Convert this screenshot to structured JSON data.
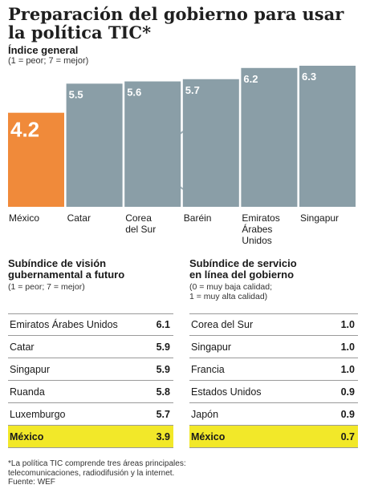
{
  "title": "Preparación del gobierno para usar la política TIC*",
  "chart": {
    "subtitle": "Índice general",
    "note": "(1 = peor; 7 = mejor)"
  },
  "chart_data": {
    "type": "bar",
    "title": "Índice general",
    "categories": [
      "México",
      "Catar",
      "Corea del Sur",
      "Baréin",
      "Emiratos Árabes Unidos",
      "Singapur"
    ],
    "category_lines": [
      [
        "México"
      ],
      [
        "Catar"
      ],
      [
        "Corea",
        "del Sur"
      ],
      [
        "Baréin"
      ],
      [
        "Emiratos",
        "Árabes",
        "Unidos"
      ],
      [
        "Singapur"
      ]
    ],
    "values": [
      4.2,
      5.5,
      5.6,
      5.7,
      6.2,
      6.3
    ],
    "value_labels": [
      "4.2",
      "5.5",
      "5.6",
      "5.7",
      "6.2",
      "6.3"
    ],
    "colors": [
      "#f08a3a",
      "#8a9ea7",
      "#8a9ea7",
      "#8a9ea7",
      "#8a9ea7",
      "#8a9ea7"
    ],
    "ylim": [
      0,
      6.3
    ],
    "grid": false
  },
  "left_table": {
    "title": "Subíndice de visión gubernamental a futuro",
    "title_lines": [
      "Subíndice de visión",
      "gubernamental a futuro"
    ],
    "note": "(1 = peor; 7 = mejor)",
    "rows": [
      {
        "country": "Emiratos Árabes Unidos",
        "value": "6.1"
      },
      {
        "country": "Catar",
        "value": "5.9"
      },
      {
        "country": "Singapur",
        "value": "5.9"
      },
      {
        "country": "Ruanda",
        "value": "5.8"
      },
      {
        "country": "Luxemburgo",
        "value": "5.7"
      },
      {
        "country": "México",
        "value": "3.9"
      }
    ],
    "highlight_color": "#f2e829"
  },
  "right_table": {
    "title": "Subíndice de servicio en línea del gobierno",
    "title_lines": [
      "Subíndice de servicio",
      "en línea del gobierno"
    ],
    "note_lines": [
      "(0 = muy baja calidad;",
      "1 = muy alta calidad)"
    ],
    "rows": [
      {
        "country": "Corea del Sur",
        "value": "1.0"
      },
      {
        "country": "Singapur",
        "value": "1.0"
      },
      {
        "country": "Francia",
        "value": "1.0"
      },
      {
        "country": "Estados Unidos",
        "value": "0.9"
      },
      {
        "country": "Japón",
        "value": "0.9"
      },
      {
        "country": "México",
        "value": "0.7"
      }
    ]
  },
  "footnote_lines": [
    "*La política TIC comprende tres áreas principales:",
    "telecomunicaciones, radiodifusión y la internet.",
    "Fuente: WEF"
  ]
}
